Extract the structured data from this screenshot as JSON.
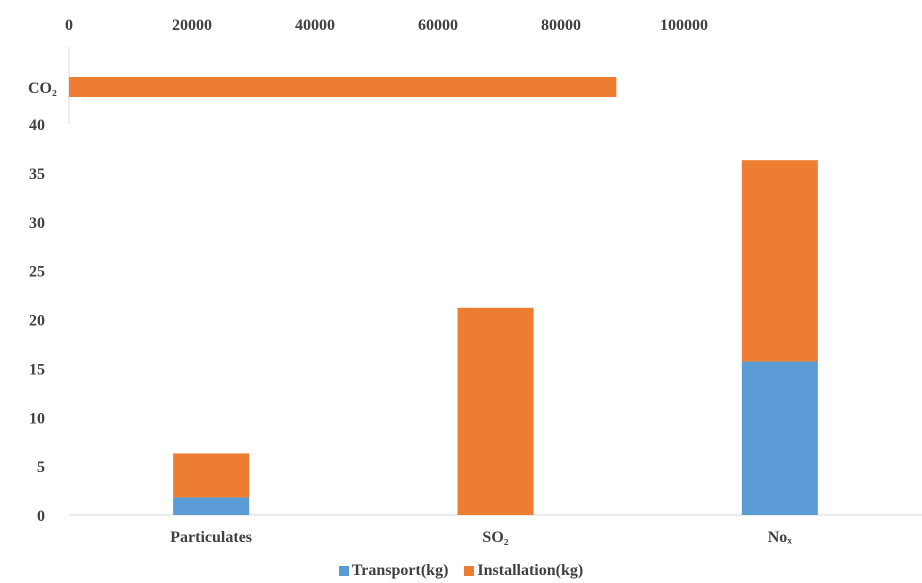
{
  "chart_data": [
    {
      "type": "bar",
      "orientation": "horizontal",
      "categories": [
        "CO₂"
      ],
      "series": [
        {
          "name": "Installation(kg)",
          "values": [
            89000
          ]
        }
      ],
      "x_ticks": [
        "0",
        "20000",
        "40000",
        "60000",
        "80000",
        "100000"
      ],
      "xlim": [
        0,
        100000
      ],
      "x_axis_position": "top",
      "grid": false
    },
    {
      "type": "bar",
      "stacked": true,
      "categories": [
        "Particulates",
        "SO₂",
        "Noₓ"
      ],
      "series": [
        {
          "name": "Transport(kg)",
          "values": [
            1.8,
            0,
            15.7
          ]
        },
        {
          "name": "Installation(kg)",
          "values": [
            4.5,
            21.2,
            20.6
          ]
        }
      ],
      "y_ticks": [
        "0",
        "5",
        "10",
        "15",
        "20",
        "25",
        "30",
        "35",
        "40"
      ],
      "ylim": [
        0,
        40
      ],
      "grid": false,
      "legend_position": "bottom"
    }
  ],
  "colors": {
    "transport": "#5b9bd5",
    "installation": "#ed7d31",
    "axis": "#d9d9d9",
    "text": "#404040"
  },
  "legend": {
    "transport_label": "Transport(kg)",
    "installation_label": "Installation(kg)"
  }
}
